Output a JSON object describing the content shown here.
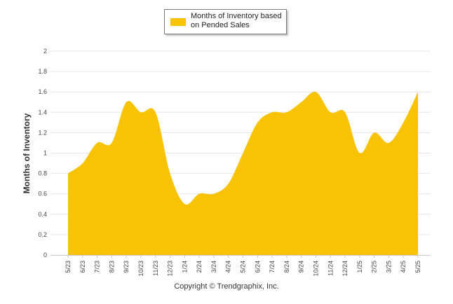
{
  "colors": {
    "area": "#F8C305",
    "grid": "#e6e6e6",
    "axis": "#c8c8c8"
  },
  "legend": {
    "label": "Months of Inventory based on Pended Sales"
  },
  "credit": "Copyright © Trendgraphix, Inc.",
  "chart_data": {
    "type": "area",
    "title": "",
    "xlabel": "",
    "ylabel": "Months of Inventory",
    "ylim": [
      0,
      2
    ],
    "yticks": [
      "0",
      "0.2",
      "0.4",
      "0.6",
      "0.8",
      "1",
      "1.2",
      "1.4",
      "1.6",
      "1.8",
      "2"
    ],
    "grid": true,
    "legend_position": "top-center",
    "categories": [
      "5/23",
      "6/23",
      "7/23",
      "8/23",
      "9/23",
      "10/23",
      "11/23",
      "12/23",
      "1/24",
      "2/24",
      "3/24",
      "4/24",
      "5/24",
      "6/24",
      "7/24",
      "8/24",
      "9/24",
      "10/24",
      "11/24",
      "12/24",
      "1/25",
      "2/25",
      "3/25",
      "4/25",
      "5/25"
    ],
    "series": [
      {
        "name": "Months of Inventory based on Pended Sales",
        "values": [
          0.8,
          0.9,
          1.1,
          1.1,
          1.5,
          1.4,
          1.4,
          0.8,
          0.5,
          0.6,
          0.6,
          0.7,
          1.0,
          1.3,
          1.4,
          1.4,
          1.5,
          1.6,
          1.4,
          1.4,
          1.0,
          1.2,
          1.1,
          1.3,
          1.6
        ]
      }
    ]
  }
}
